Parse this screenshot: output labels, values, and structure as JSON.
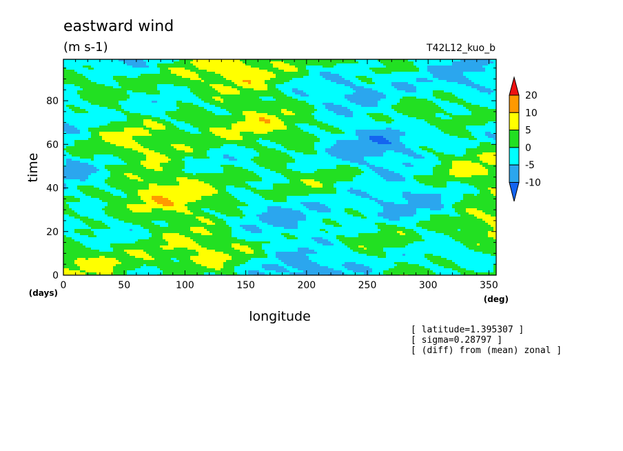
{
  "header": {
    "title": "eastward wind",
    "units": "(m s-1)",
    "run_name": "T42L12_kuo_b"
  },
  "footer": {
    "notes": [
      "[ latitude=1.395307 ]",
      "[ sigma=0.28797 ]",
      "[ (diff) from (mean) zonal ]"
    ]
  },
  "chart_data": {
    "type": "heatmap",
    "title": "eastward wind",
    "xlabel": "longitude",
    "ylabel": "time",
    "x_unit": "(deg)",
    "y_unit": "(days)",
    "xlim": [
      0,
      356
    ],
    "ylim": [
      0,
      99
    ],
    "x_ticks": [
      0,
      50,
      100,
      150,
      200,
      250,
      300,
      350
    ],
    "y_ticks": [
      0,
      20,
      40,
      60,
      80
    ],
    "colorbar": {
      "levels": [
        -10,
        -5,
        0,
        5,
        10,
        20
      ],
      "labels": [
        "20",
        "10",
        "5",
        "0",
        "-5",
        "-10"
      ],
      "colors": [
        "#1464f0",
        "#2ba6ee",
        "#00ffff",
        "#22e022",
        "#ffff00",
        "#ff9900",
        "#ee1111"
      ]
    }
  }
}
